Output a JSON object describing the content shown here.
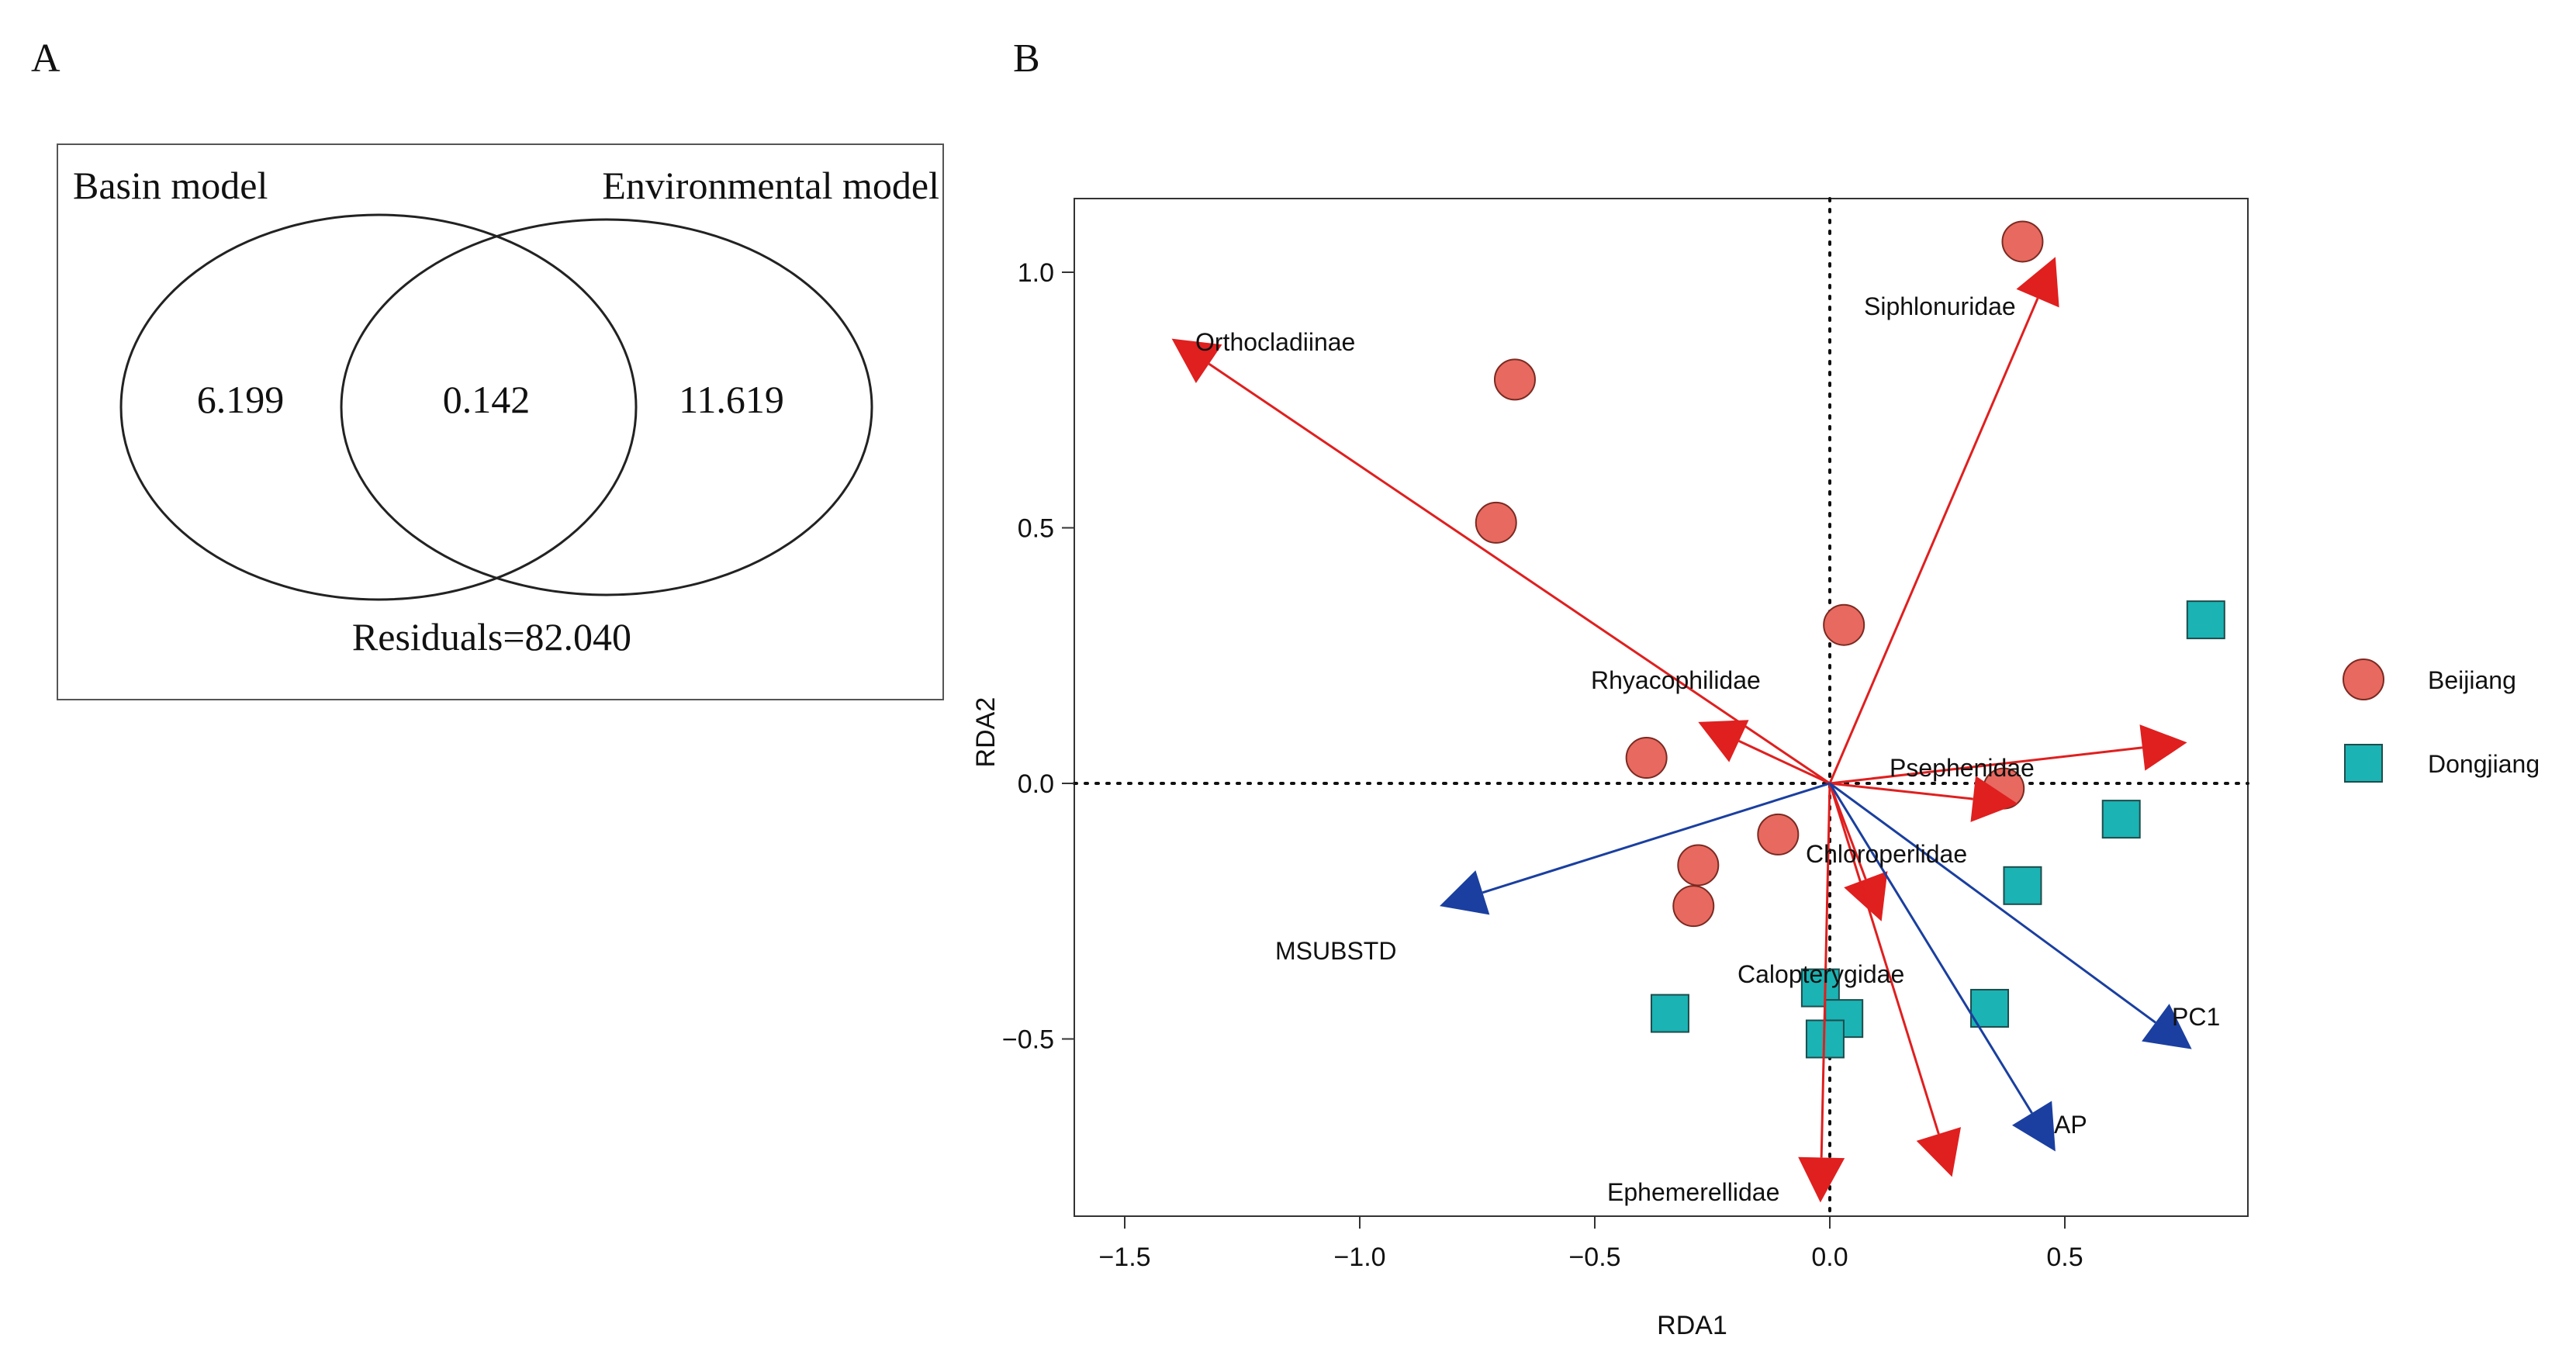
{
  "panel_a": {
    "label": "A",
    "left_set_label": "Basin model",
    "right_set_label": "Environmental model",
    "left_only": "6.199",
    "overlap": "0.142",
    "right_only": "11.619",
    "residuals": "Residuals=82.040"
  },
  "panel_b": {
    "label": "B"
  },
  "chart_data": [
    {
      "type": "venn",
      "sets": [
        "Basin model",
        "Environmental model"
      ],
      "values": {
        "Basin model only": 6.199,
        "Shared": 0.142,
        "Environmental model only": 11.619,
        "Residuals": 82.04
      }
    },
    {
      "type": "scatter",
      "title": "",
      "xlabel": "RDA1",
      "ylabel": "RDA2",
      "xlim": [
        -1.55,
        0.92
      ],
      "ylim": [
        -0.85,
        1.15
      ],
      "xticks": [
        -1.5,
        -1.0,
        -0.5,
        0.0,
        0.5
      ],
      "xtick_labels": [
        "−1.5",
        "−1.0",
        "−0.5",
        "0.0",
        "0.5"
      ],
      "yticks": [
        1.0,
        0.5,
        0.0,
        -0.5
      ],
      "ytick_labels": [
        "1.0",
        "0.5",
        "0.0",
        "−0.5"
      ],
      "colors": {
        "beijiang": "#e8695f",
        "dongjiang": "#1bb3b3",
        "species_arrow": "#e01f1f",
        "env_arrow": "#1a3fa0"
      },
      "series": [
        {
          "name": "Beijiang",
          "marker": "circle",
          "points": [
            {
              "x": 0.41,
              "y": 1.06
            },
            {
              "x": -0.67,
              "y": 0.79
            },
            {
              "x": -0.71,
              "y": 0.51
            },
            {
              "x": 0.03,
              "y": 0.31
            },
            {
              "x": -0.39,
              "y": 0.05
            },
            {
              "x": -0.11,
              "y": -0.1
            },
            {
              "x": -0.28,
              "y": -0.16
            },
            {
              "x": -0.29,
              "y": -0.24
            },
            {
              "x": 0.37,
              "y": -0.01
            }
          ]
        },
        {
          "name": "Dongjiang",
          "marker": "square",
          "points": [
            {
              "x": 0.8,
              "y": 0.32
            },
            {
              "x": 0.62,
              "y": -0.07
            },
            {
              "x": 0.41,
              "y": -0.2
            },
            {
              "x": 0.34,
              "y": -0.44
            },
            {
              "x": -0.34,
              "y": -0.45
            },
            {
              "x": -0.02,
              "y": -0.4
            },
            {
              "x": 0.03,
              "y": -0.46
            },
            {
              "x": -0.01,
              "y": -0.5
            }
          ]
        }
      ],
      "species_arrows": [
        {
          "label": "Orthocladiinae",
          "x": -1.4,
          "y": 0.87
        },
        {
          "label": "Siphlonuridae",
          "x": 0.48,
          "y": 1.03
        },
        {
          "label": "Rhyacophilidae",
          "x": -0.28,
          "y": 0.12
        },
        {
          "label": "Psephenidae",
          "x": 0.76,
          "y": 0.08
        },
        {
          "label": "",
          "x": 0.4,
          "y": -0.04
        },
        {
          "label": "Chloroperlidae",
          "x": 0.11,
          "y": -0.27
        },
        {
          "label": "Calopterygidae",
          "x": 0.26,
          "y": -0.77
        },
        {
          "label": "Ephemerellidae",
          "x": -0.02,
          "y": -0.82
        }
      ],
      "env_arrows": [
        {
          "label": "MSUBSTD",
          "x": -0.83,
          "y": -0.24
        },
        {
          "label": "PC1",
          "x": 0.77,
          "y": -0.52
        },
        {
          "label": "AP",
          "x": 0.48,
          "y": -0.72
        }
      ],
      "legend": {
        "position": "right",
        "entries": [
          "Beijiang",
          "Dongjiang"
        ]
      }
    }
  ]
}
